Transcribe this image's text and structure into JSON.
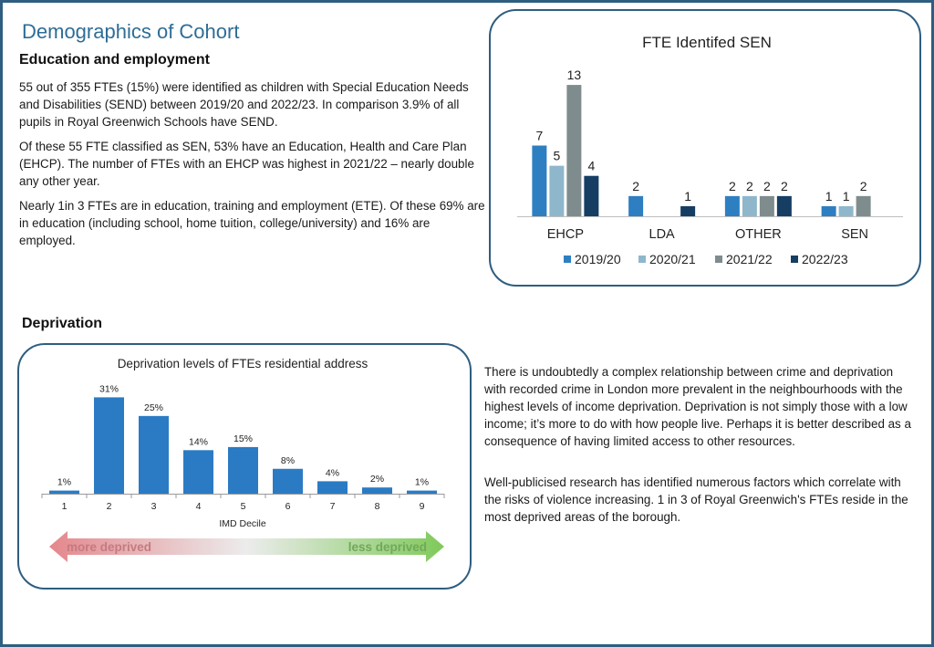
{
  "page": {
    "title": "Demographics of Cohort",
    "section_education": "Education and employment",
    "edu_para1": "55 out of 355 FTEs (15%) were identified as children with Special Education Needs and Disabilities (SEND) between 2019/20 and 2022/23. In comparison 3.9% of all pupils in Royal Greenwich Schools have SEND.",
    "edu_para2": "Of these 55 FTE classified as SEN, 53% have an Education, Health and Care Plan (EHCP). The number of FTEs with an EHCP was highest in 2021/22 – nearly double any other year.",
    "edu_para3": "Nearly 1in 3 FTEs are in education, training and employment (ETE). Of these 69% are in education (including school, home tuition, college/university) and 16% are employed.",
    "section_deprivation": "Deprivation",
    "dep_para1": "There is undoubtedly a complex relationship between crime and deprivation with recorded crime in London more prevalent in the neighbourhoods with the highest levels of income deprivation. Deprivation is not simply those with a low income; it’s more to do with how people live. Perhaps it is better described as a consequence of having limited access to other resources.",
    "dep_para2": "Well-publicised research has identified numerous factors which correlate with the risks of violence increasing. 1 in 3 of Royal Greenwich's FTEs reside in the most deprived areas of the borough."
  },
  "chart_data": [
    {
      "type": "bar",
      "title": "FTE Identifed SEN",
      "categories": [
        "EHCP",
        "LDA",
        "OTHER",
        "SEN"
      ],
      "series": [
        {
          "name": "2019/20",
          "values": [
            7,
            2,
            2,
            1
          ],
          "color": "#2e7fc1"
        },
        {
          "name": "2020/21",
          "values": [
            5,
            null,
            2,
            1
          ],
          "color": "#8fb7cc"
        },
        {
          "name": "2021/22",
          "values": [
            13,
            null,
            2,
            2
          ],
          "color": "#7f8c8d"
        },
        {
          "name": "2022/23",
          "values": [
            4,
            1,
            2,
            null
          ],
          "color": "#163e63"
        }
      ],
      "ylim": [
        0,
        14
      ],
      "legend": "bottom",
      "grid": false
    },
    {
      "type": "bar",
      "title": "Deprivation levels of FTEs residential address",
      "xlabel": "IMD Decile",
      "categories": [
        "1",
        "2",
        "3",
        "4",
        "5",
        "6",
        "7",
        "8",
        "9"
      ],
      "values": [
        1,
        31,
        25,
        14,
        15,
        8,
        4,
        2,
        1
      ],
      "labels": [
        "1%",
        "31%",
        "25%",
        "14%",
        "15%",
        "8%",
        "4%",
        "2%",
        "1%"
      ],
      "ylim": [
        0,
        32
      ],
      "color": "#2b7bc4",
      "grid": false,
      "arrow_left": "more deprived",
      "arrow_right": "less deprived"
    }
  ]
}
